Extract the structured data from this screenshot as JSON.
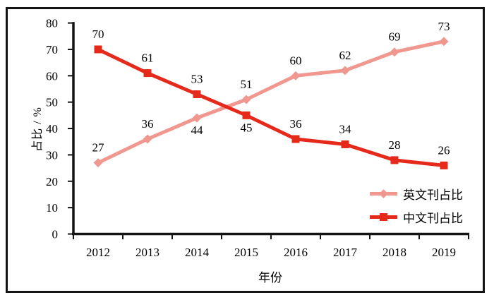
{
  "chart_data": {
    "type": "line",
    "title": "",
    "xlabel": "年份",
    "ylabel": "占比 / %",
    "categories": [
      "2012",
      "2013",
      "2014",
      "2015",
      "2016",
      "2017",
      "2018",
      "2019"
    ],
    "yticks": [
      0,
      10,
      20,
      30,
      40,
      50,
      60,
      70,
      80
    ],
    "ylim": [
      0,
      80
    ],
    "grid": false,
    "legend_position": "inside-bottom-right",
    "series": [
      {
        "name": "英文刊占比",
        "marker": "diamond",
        "color": "#f0988f",
        "values": [
          27,
          36,
          44,
          51,
          60,
          62,
          69,
          73
        ]
      },
      {
        "name": "中文刊占比",
        "marker": "square",
        "color": "#e52a1c",
        "values": [
          70,
          61,
          53,
          45,
          36,
          34,
          28,
          26
        ]
      }
    ]
  },
  "style": {
    "axis_color": "#141414",
    "frame_color": "#141414",
    "text_color": "#000000",
    "background": "#ffffff"
  }
}
